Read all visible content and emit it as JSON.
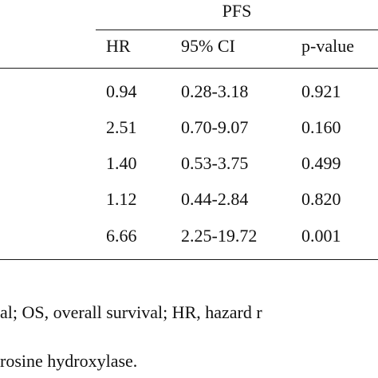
{
  "table": {
    "group_header": "PFS",
    "columns": [
      "HR",
      "95% CI",
      "p-value"
    ],
    "rows": [
      {
        "hr": "0.94",
        "ci": "0.28-3.18",
        "p": "0.921"
      },
      {
        "hr": "2.51",
        "ci": "0.70-9.07",
        "p": "0.160"
      },
      {
        "hr": "1.40",
        "ci": "0.53-3.75",
        "p": "0.499"
      },
      {
        "hr": "1.12",
        "ci": "0.44-2.84",
        "p": "0.820"
      },
      {
        "hr": "6.66",
        "ci": "2.25-19.72",
        "p": "0.001"
      }
    ]
  },
  "caption": {
    "line1": "al; OS, overall survival; HR, hazard r",
    "line2": "rosine hydroxylase."
  }
}
